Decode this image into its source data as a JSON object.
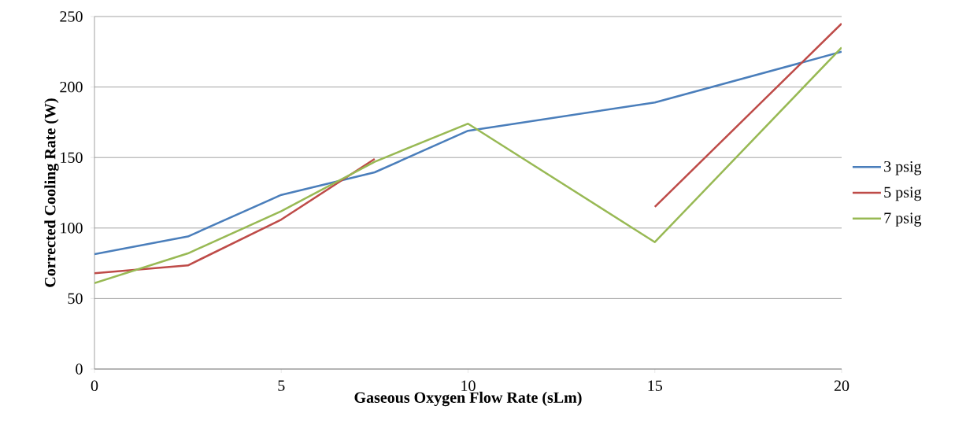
{
  "chart_data": {
    "type": "line",
    "xlabel": "Gaseous Oxygen Flow Rate (sLm)",
    "ylabel": "Corrected Cooling Rate (W)",
    "x": [
      0,
      2.5,
      5,
      7.5,
      10,
      15,
      20
    ],
    "series": [
      {
        "name": "3 psig",
        "color": "#4a7ebb",
        "values": [
          81.5,
          94,
          123.5,
          139.5,
          169,
          189,
          225
        ]
      },
      {
        "name": "5 psig",
        "color": "#be4b48",
        "values": [
          68,
          73.5,
          106,
          149,
          null,
          115,
          245
        ]
      },
      {
        "name": "7 psig",
        "color": "#98b954",
        "values": [
          61,
          82,
          112,
          147,
          174,
          90,
          228
        ]
      }
    ],
    "xlim": [
      0,
      20
    ],
    "xticks": [
      0,
      5,
      10,
      15,
      20
    ],
    "ylim": [
      0,
      250
    ],
    "yticks": [
      0,
      50,
      100,
      150,
      200,
      250
    ],
    "grid": "y",
    "legend": "right",
    "marker": "none",
    "line_style": "solid"
  }
}
